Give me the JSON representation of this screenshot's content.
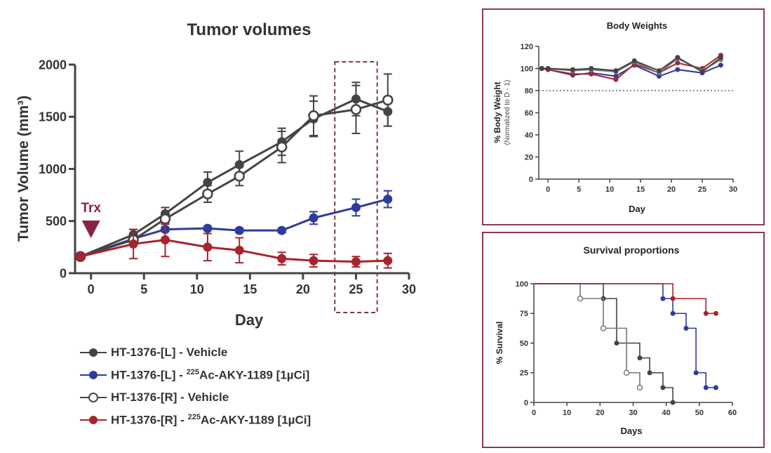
{
  "colors": {
    "dark": "#444444",
    "blue": "#2f3b9e",
    "red": "#a8242d",
    "frame": "#8a3a55",
    "trx": "#8a2248"
  },
  "chart_data": [
    {
      "type": "line",
      "title": "Tumor volumes",
      "xlabel": "Day",
      "ylabel": "Tumor Volume (mm³)",
      "xlim": [
        -1.5,
        30
      ],
      "ylim": [
        0,
        2000
      ],
      "xticks": [
        0,
        5,
        10,
        15,
        20,
        25,
        30
      ],
      "yticks": [
        0,
        500,
        1000,
        1500,
        2000
      ],
      "annotation": {
        "label": "Trx",
        "x": 0
      },
      "highlight": {
        "x_from": 23,
        "x_to": 27
      },
      "series": [
        {
          "name": "HT-1376-[L] - Vehicle",
          "name_sup": "",
          "name_rest": "",
          "color": "#444444",
          "marker": "filled",
          "x": [
            -1,
            4,
            7,
            11,
            14,
            18,
            21,
            25,
            28
          ],
          "y": [
            160,
            370,
            570,
            870,
            1040,
            1260,
            1480,
            1670,
            1550
          ],
          "err": [
            25,
            50,
            60,
            100,
            130,
            130,
            170,
            160,
            140
          ]
        },
        {
          "name": "HT-1376-[L] - ",
          "name_sup": "225",
          "name_rest": "Ac-AKY-1189 [1µCi]",
          "color": "#2f3b9e",
          "marker": "filled",
          "x": [
            -1,
            4,
            7,
            11,
            14,
            18,
            21,
            25,
            28
          ],
          "y": [
            160,
            330,
            420,
            430,
            410,
            410,
            530,
            630,
            710
          ],
          "err": [
            15,
            20,
            20,
            20,
            20,
            20,
            60,
            80,
            80
          ]
        },
        {
          "name": "HT-1376-[R] - Vehicle",
          "name_sup": "",
          "name_rest": "",
          "color": "#444444",
          "marker": "open",
          "x": [
            -1,
            4,
            7,
            11,
            14,
            18,
            21,
            25,
            28
          ],
          "y": [
            160,
            320,
            520,
            760,
            930,
            1210,
            1510,
            1570,
            1660
          ],
          "err": [
            20,
            40,
            50,
            80,
            90,
            150,
            190,
            230,
            250
          ]
        },
        {
          "name": "HT-1376-[R] - ",
          "name_sup": "225",
          "name_rest": "Ac-AKY-1189 [1µCi]",
          "color": "#a8242d",
          "marker": "filled",
          "x": [
            -1,
            4,
            7,
            11,
            14,
            18,
            21,
            25,
            28
          ],
          "y": [
            160,
            280,
            320,
            250,
            220,
            140,
            120,
            110,
            120
          ],
          "err": [
            20,
            140,
            160,
            130,
            120,
            60,
            60,
            50,
            70
          ]
        }
      ]
    },
    {
      "type": "line",
      "title": "Body Weights",
      "xlabel": "Day",
      "ylabel": "% Body Weight",
      "ylabel2": "(Normalized to D - 1)",
      "xlim": [
        -1.5,
        30
      ],
      "ylim": [
        0,
        120
      ],
      "xticks": [
        0,
        5,
        10,
        15,
        20,
        25,
        30
      ],
      "yticks": [
        0,
        20,
        40,
        60,
        80,
        100,
        120
      ],
      "reference_line": 80,
      "series": [
        {
          "color": "#2f3b9e",
          "x": [
            -1,
            0,
            4,
            7,
            11,
            14,
            18,
            21,
            25,
            28
          ],
          "y": [
            100,
            99,
            94,
            96,
            93,
            103,
            93,
            99,
            96,
            103
          ]
        },
        {
          "color": "#a8242d",
          "x": [
            -1,
            0,
            4,
            7,
            11,
            14,
            18,
            21,
            25,
            28
          ],
          "y": [
            100,
            99,
            95,
            95,
            90,
            104,
            96,
            105,
            100,
            112
          ]
        },
        {
          "color": "#777777",
          "x": [
            -1,
            0,
            4,
            7,
            11,
            14,
            18,
            21,
            25,
            28
          ],
          "y": [
            100,
            100,
            98,
            99,
            97,
            106,
            96,
            109,
            98,
            108
          ]
        },
        {
          "color": "#444444",
          "x": [
            -1,
            0,
            4,
            7,
            11,
            14,
            18,
            21,
            25,
            28
          ],
          "y": [
            100,
            100,
            99,
            100,
            98,
            107,
            98,
            110,
            97,
            110
          ]
        }
      ]
    },
    {
      "type": "line",
      "title": "Survival proportions",
      "xlabel": "Days",
      "ylabel": "% Survival",
      "xlim": [
        0,
        60
      ],
      "ylim": [
        0,
        100
      ],
      "xticks": [
        0,
        10,
        20,
        30,
        40,
        50,
        60
      ],
      "yticks": [
        0,
        25,
        50,
        75,
        100
      ],
      "series": [
        {
          "color": "#444444",
          "marker": "filled",
          "x": [
            0,
            21,
            25,
            32,
            35,
            39,
            42
          ],
          "y": [
            100,
            87.5,
            50,
            37.5,
            25,
            12.5,
            0
          ]
        },
        {
          "color": "#777777",
          "marker": "open",
          "x": [
            0,
            14,
            21,
            28,
            32
          ],
          "y": [
            100,
            87.5,
            62.5,
            25,
            12.5
          ]
        },
        {
          "color": "#2f3b9e",
          "marker": "filled",
          "x": [
            0,
            39,
            42,
            46,
            49,
            52,
            55
          ],
          "y": [
            100,
            87.5,
            75,
            62.5,
            25,
            12.5,
            12.5
          ]
        },
        {
          "color": "#a8242d",
          "marker": "filled",
          "x": [
            0,
            42,
            52,
            55
          ],
          "y": [
            100,
            87.5,
            75,
            75
          ]
        }
      ]
    }
  ]
}
